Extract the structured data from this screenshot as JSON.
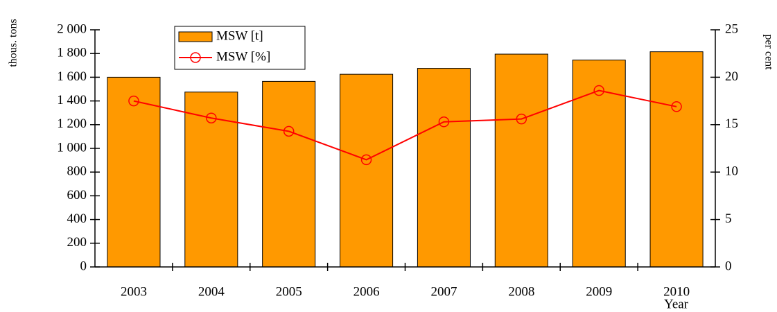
{
  "chart_data": {
    "type": "bar",
    "y_label": "thous. tons",
    "y2_label": "per cent",
    "x_label": "Year",
    "categories": [
      "2003",
      "2004",
      "2005",
      "2006",
      "2007",
      "2008",
      "2009",
      "2010"
    ],
    "series": [
      {
        "name": "MSW [t]",
        "type": "bar",
        "color": "#ff9900",
        "values": [
          1600,
          1475,
          1565,
          1625,
          1675,
          1795,
          1745,
          1815
        ]
      },
      {
        "name": "MSW [%]",
        "type": "line",
        "axis": "y2",
        "color": "#ff0000",
        "values": [
          17.5,
          15.7,
          14.3,
          11.3,
          15.3,
          15.6,
          18.6,
          16.9
        ]
      }
    ],
    "ylim": [
      0,
      2000
    ],
    "yticks": [
      0,
      200,
      400,
      600,
      800,
      {
        "value": 1000,
        "label": "1 000"
      },
      {
        "value": 1200,
        "label": "1 200"
      },
      {
        "value": 1400,
        "label": "1 400"
      },
      {
        "value": 1600,
        "label": "1 600"
      },
      {
        "value": 1800,
        "label": "1 800"
      },
      {
        "value": 2000,
        "label": "2 000"
      }
    ],
    "y2lim": [
      0,
      25
    ],
    "y2ticks": [
      0,
      5,
      10,
      15,
      20,
      25
    ],
    "legend": "upper-left"
  }
}
